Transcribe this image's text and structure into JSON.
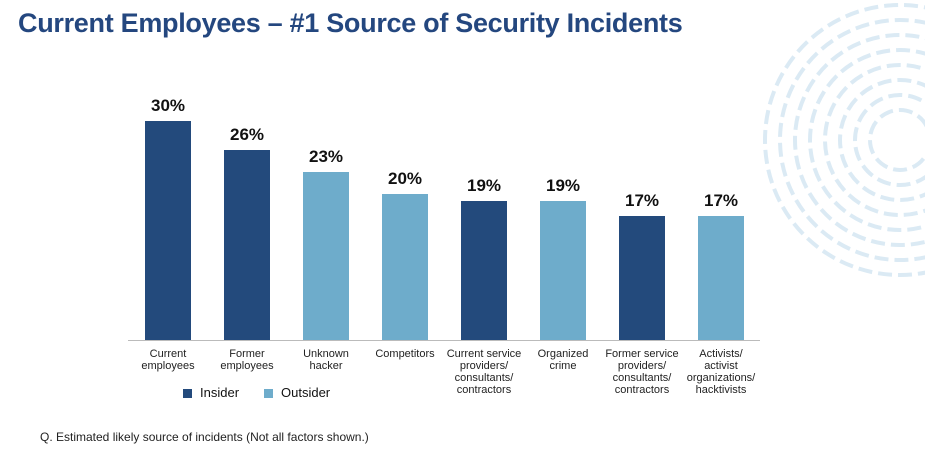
{
  "chart_data": {
    "type": "bar",
    "title": "Current Employees – #1 Source of Security Incidents",
    "categories": [
      "Current employees",
      "Former employees",
      "Unknown hacker",
      "Competitors",
      "Current service providers/ consultants/ contractors",
      "Organized crime",
      "Former service providers/ consultants/ contractors",
      "Activists/ activist organizations/ hacktivists"
    ],
    "series": [
      {
        "name": "Insider",
        "color": "#234a7c",
        "values": [
          30,
          26,
          null,
          null,
          19,
          null,
          17,
          null
        ],
        "value_labels": [
          "30%",
          "26%",
          null,
          null,
          "19%",
          null,
          "17%",
          null
        ]
      },
      {
        "name": "Outsider",
        "color": "#6eaccb",
        "values": [
          null,
          null,
          23,
          20,
          null,
          19,
          null,
          17
        ],
        "value_labels": [
          null,
          null,
          "23%",
          "20%",
          null,
          "19%",
          null,
          "17%"
        ]
      }
    ],
    "footnote": "Q. Estimated likely source of incidents (Not all factors shown.)"
  }
}
